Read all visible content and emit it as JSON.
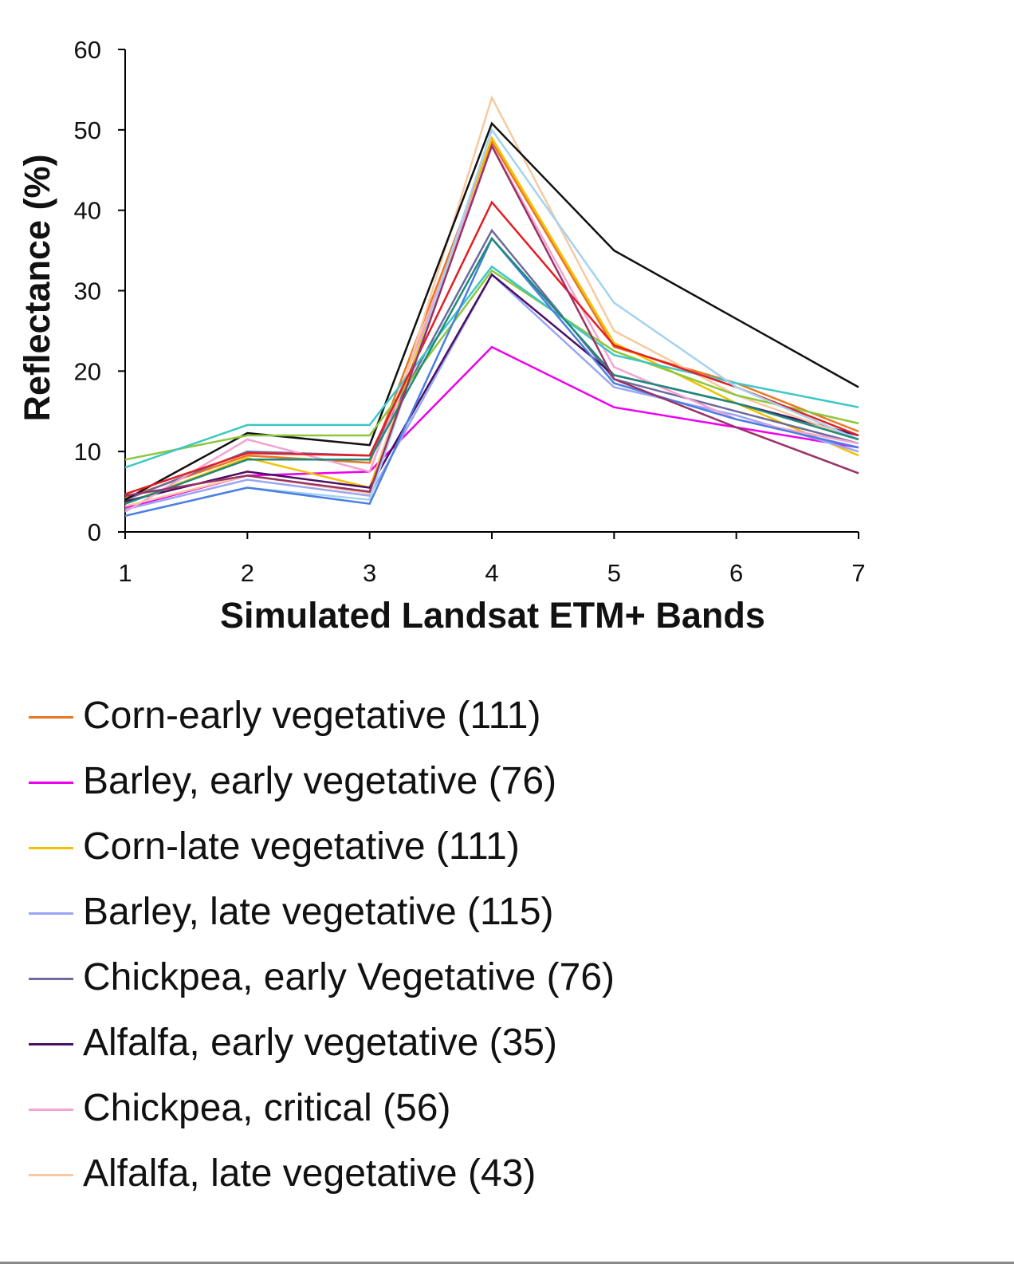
{
  "chart_data": {
    "type": "line",
    "title": "",
    "xlabel": "Simulated Landsat ETM+ Bands",
    "ylabel": "Reflectance (%)",
    "x": [
      1,
      2,
      3,
      4,
      5,
      6,
      7
    ],
    "ylim": [
      0,
      60
    ],
    "yticks": [
      0,
      10,
      20,
      30,
      40,
      50,
      60
    ],
    "grid": false,
    "legend_position": "bottom",
    "series": [
      {
        "name": "Corn-early vegetative (111)",
        "color": "#E87722",
        "values": [
          4.2,
          9.5,
          8.6,
          48.5,
          23.0,
          18.5,
          12.5
        ]
      },
      {
        "name": "Barley, early vegetative (76)",
        "color": "#EE00EE",
        "values": [
          3.0,
          7.0,
          7.5,
          23.0,
          15.5,
          13.0,
          10.5
        ]
      },
      {
        "name": "Corn-late vegetative (111)",
        "color": "#F2C200",
        "values": [
          3.5,
          9.2,
          5.5,
          49.0,
          23.5,
          16.0,
          9.5
        ]
      },
      {
        "name": "Barley, late vegetative (115)",
        "color": "#9AA6F5",
        "values": [
          2.8,
          6.5,
          4.5,
          32.0,
          18.0,
          14.5,
          10.0
        ]
      },
      {
        "name": "Chickpea, early Vegetative (76)",
        "color": "#6E6A9E",
        "values": [
          4.0,
          10.0,
          9.5,
          37.5,
          19.0,
          15.0,
          11.0
        ]
      },
      {
        "name": "Alfalfa, early vegetative (35)",
        "color": "#4B0F63",
        "values": [
          3.8,
          7.5,
          5.5,
          32.0,
          19.5,
          16.0,
          12.0
        ]
      },
      {
        "name": "Chickpea, critical (56)",
        "color": "#F4A3D2",
        "values": [
          2.5,
          11.5,
          7.5,
          48.0,
          20.5,
          14.0,
          11.0
        ]
      },
      {
        "name": "Alfalfa, late vegetative (43)",
        "color": "#F8C9A0",
        "values": [
          3.2,
          7.0,
          4.8,
          54.0,
          25.0,
          17.0,
          11.5
        ]
      },
      {
        "values": [
          4.0,
          12.3,
          10.8,
          50.8,
          35.0,
          26.5,
          18.0
        ],
        "color": "#111111"
      },
      {
        "values": [
          9.0,
          12.0,
          12.0,
          32.5,
          22.5,
          17.0,
          13.5
        ],
        "color": "#8DC63F"
      },
      {
        "values": [
          8.0,
          13.3,
          13.3,
          33.0,
          22.0,
          18.5,
          15.5
        ],
        "color": "#3EC6C6"
      },
      {
        "values": [
          4.7,
          9.8,
          9.5,
          41.0,
          23.2,
          18.0,
          12.0
        ],
        "color": "#E31E24"
      },
      {
        "values": [
          2.0,
          5.5,
          4.0,
          50.0,
          28.5,
          18.0,
          11.5
        ],
        "color": "#A4D2F0"
      },
      {
        "values": [
          2.0,
          5.5,
          3.5,
          36.5,
          18.5,
          14.0,
          10.5
        ],
        "color": "#4A7FE0"
      },
      {
        "values": [
          3.5,
          9.0,
          9.0,
          36.5,
          19.5,
          16.0,
          11.5
        ],
        "color": "#1E8A7A"
      },
      {
        "values": [
          4.5,
          7.0,
          5.0,
          48.0,
          19.0,
          13.0,
          7.3
        ],
        "color": "#993366"
      }
    ]
  }
}
